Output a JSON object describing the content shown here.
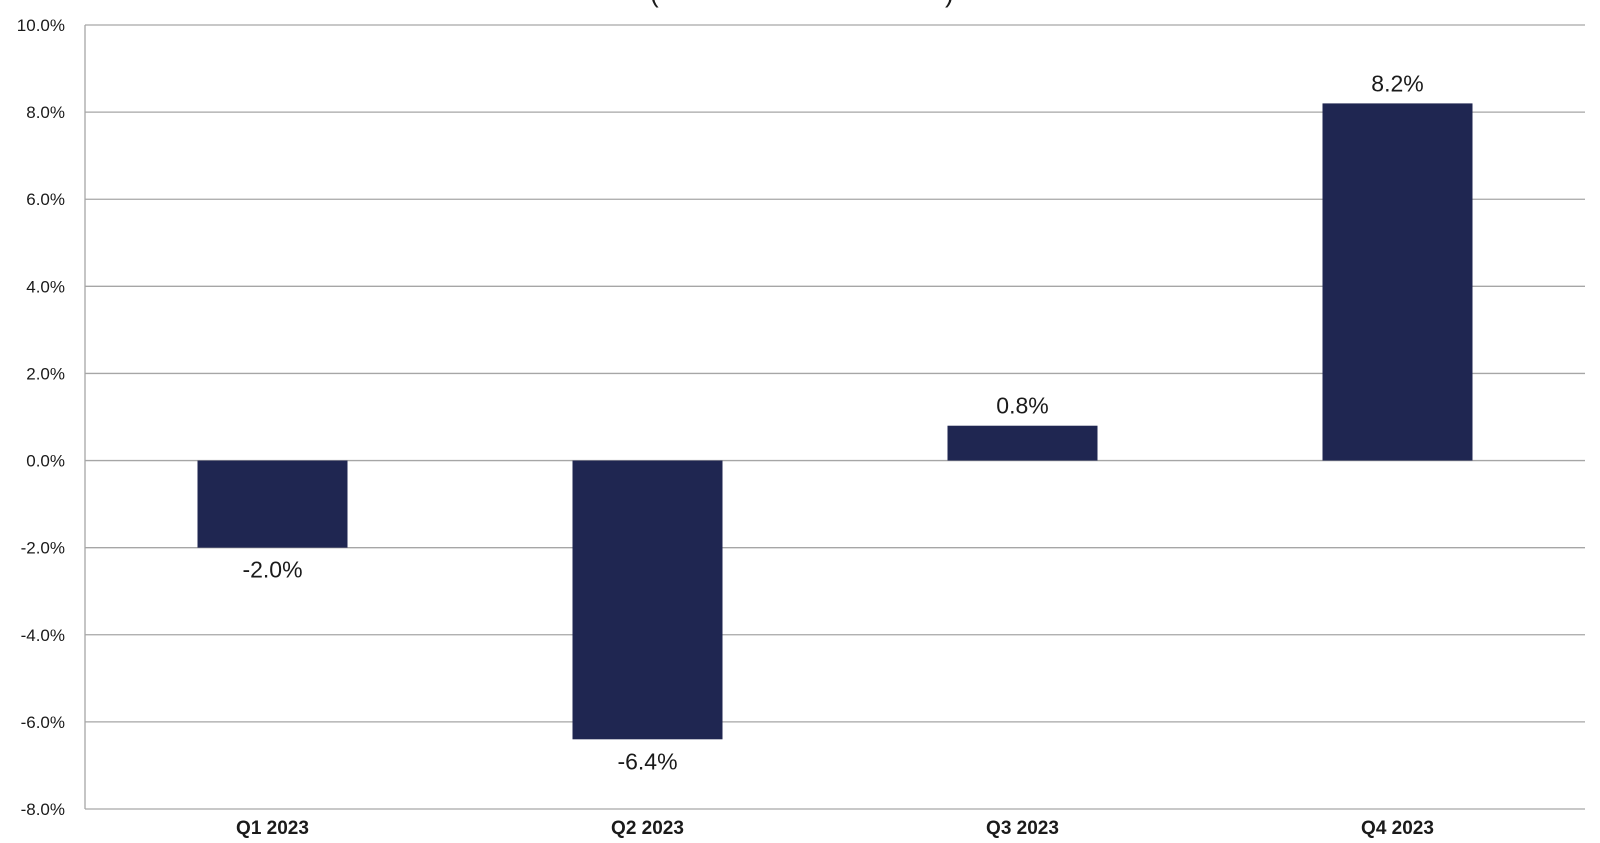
{
  "chart_data": {
    "type": "bar",
    "categories": [
      "Q1 2023",
      "Q2 2023",
      "Q3 2023",
      "Q4 2023"
    ],
    "values": [
      -2.0,
      -6.4,
      0.8,
      8.2
    ],
    "value_labels": [
      "-2.0%",
      "-6.4%",
      "0.8%",
      "8.2%"
    ],
    "ylim": [
      -8.0,
      10.0
    ],
    "yticks": [
      10.0,
      8.0,
      6.0,
      4.0,
      2.0,
      0.0,
      -2.0,
      -4.0,
      -6.0,
      -8.0
    ],
    "ytick_labels": [
      "10.0%",
      "8.0%",
      "6.0%",
      "4.0%",
      "2.0%",
      "0.0%",
      "-2.0%",
      "-4.0%",
      "-6.0%",
      "-8.0%"
    ],
    "grid": true,
    "bar_color": "#1f2651",
    "grid_color": "#a6a6a6"
  }
}
